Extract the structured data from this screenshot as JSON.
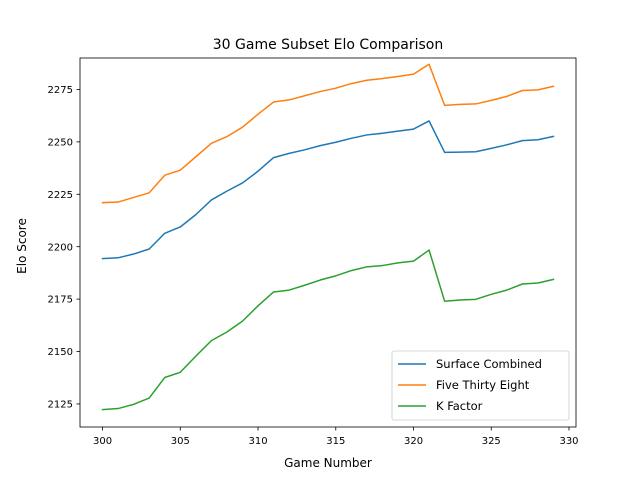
{
  "chart_data": {
    "type": "line",
    "title": "30 Game Subset Elo Comparison",
    "xlabel": "Game Number",
    "ylabel": "Elo Score",
    "xlim": [
      298.55,
      330.45
    ],
    "ylim": [
      2114,
      2290
    ],
    "xticks": [
      300,
      305,
      310,
      315,
      320,
      325,
      330
    ],
    "yticks": [
      2125,
      2150,
      2175,
      2200,
      2225,
      2250,
      2275
    ],
    "grid": false,
    "legend_position": "lower-right",
    "x": [
      300,
      301,
      302,
      303,
      304,
      305,
      306,
      307,
      308,
      309,
      310,
      311,
      312,
      313,
      314,
      315,
      316,
      317,
      318,
      319,
      320,
      321,
      322,
      323,
      324,
      325,
      326,
      327,
      328,
      329
    ],
    "series": [
      {
        "name": "Surface Combined",
        "color": "#1f77b4",
        "values": [
          2194.3,
          2194.7,
          2196.5,
          2198.9,
          2206.4,
          2209.4,
          2215.3,
          2222.3,
          2226.5,
          2230.4,
          2236.0,
          2242.5,
          2244.5,
          2246.2,
          2248.2,
          2249.8,
          2251.7,
          2253.3,
          2254.1,
          2255.1,
          2256.1,
          2260.0,
          2245.0,
          2245.1,
          2245.3,
          2246.9,
          2248.6,
          2250.6,
          2251.0,
          2252.6
        ]
      },
      {
        "name": "Five Thirty Eight",
        "color": "#ff7f0e",
        "values": [
          2221.0,
          2221.3,
          2223.5,
          2225.7,
          2234.1,
          2236.5,
          2242.9,
          2249.3,
          2252.5,
          2257.0,
          2263.2,
          2269.0,
          2270.0,
          2272.0,
          2274.0,
          2275.6,
          2277.8,
          2279.4,
          2280.2,
          2281.2,
          2282.3,
          2287.0,
          2267.4,
          2267.9,
          2268.1,
          2269.8,
          2271.7,
          2274.5,
          2274.8,
          2276.5
        ]
      },
      {
        "name": "K Factor",
        "color": "#2ca02c",
        "values": [
          2122.3,
          2122.8,
          2124.8,
          2127.8,
          2137.6,
          2140.1,
          2147.8,
          2155.2,
          2159.3,
          2164.5,
          2171.8,
          2178.4,
          2179.3,
          2181.6,
          2184.1,
          2186.1,
          2188.6,
          2190.4,
          2191.0,
          2192.3,
          2193.1,
          2198.4,
          2174.0,
          2174.6,
          2174.9,
          2177.3,
          2179.3,
          2182.2,
          2182.7,
          2184.4
        ]
      }
    ]
  }
}
